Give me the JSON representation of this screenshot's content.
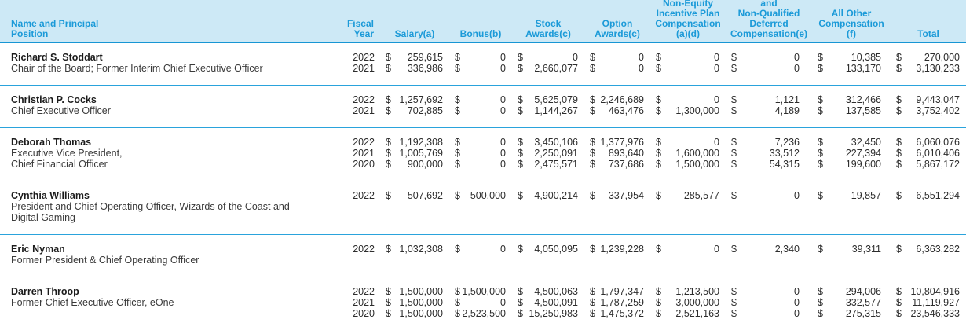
{
  "currency_symbol": "$",
  "theme": {
    "header_bg": "#cde9f6",
    "header_text": "#1b9ad8",
    "rule_color": "#1796d4",
    "body_text": "#2d2d2d"
  },
  "header": {
    "name_position": [
      "Name and Principal",
      "Position"
    ],
    "fiscal_year": [
      "Fiscal",
      "Year"
    ],
    "salary": [
      "Salary(a)"
    ],
    "bonus": [
      "Bonus(b)"
    ],
    "stock": [
      "Stock",
      "Awards(c)"
    ],
    "option": [
      "Option",
      "Awards(c)"
    ],
    "neip": [
      "Non-Equity",
      "Incentive Plan",
      "Compensation",
      "(a)(d)"
    ],
    "nqdc": [
      "and",
      "Non-Qualified",
      "Deferred",
      "Compensation(e)"
    ],
    "other": [
      "All Other",
      "Compensation",
      "(f)"
    ],
    "total": [
      "Total"
    ]
  },
  "groups": [
    {
      "name": "Richard S. Stoddart",
      "position_lines": [
        "Chair of the Board; Former Interim Chief Executive Officer"
      ],
      "rows": [
        {
          "year": "2022",
          "salary": "259,615",
          "bonus": "0",
          "stock": "0",
          "option": "0",
          "neip": "0",
          "nqdc": "0",
          "other": "10,385",
          "total": "270,000"
        },
        {
          "year": "2021",
          "salary": "336,986",
          "bonus": "0",
          "stock": "2,660,077",
          "option": "0",
          "neip": "0",
          "nqdc": "0",
          "other": "133,170",
          "total": "3,130,233"
        }
      ]
    },
    {
      "name": "Christian P. Cocks",
      "position_lines": [
        "Chief Executive Officer"
      ],
      "rows": [
        {
          "year": "2022",
          "salary": "1,257,692",
          "bonus": "0",
          "stock": "5,625,079",
          "option": "2,246,689",
          "neip": "0",
          "nqdc": "1,121",
          "other": "312,466",
          "total": "9,443,047"
        },
        {
          "year": "2021",
          "salary": "702,885",
          "bonus": "0",
          "stock": "1,144,267",
          "option": "463,476",
          "neip": "1,300,000",
          "nqdc": "4,189",
          "other": "137,585",
          "total": "3,752,402"
        }
      ]
    },
    {
      "name": "Deborah Thomas",
      "position_lines": [
        "Executive Vice President,",
        "Chief Financial Officer"
      ],
      "rows": [
        {
          "year": "2022",
          "salary": "1,192,308",
          "bonus": "0",
          "stock": "3,450,106",
          "option": "1,377,976",
          "neip": "0",
          "nqdc": "7,236",
          "other": "32,450",
          "total": "6,060,076"
        },
        {
          "year": "2021",
          "salary": "1,005,769",
          "bonus": "0",
          "stock": "2,250,091",
          "option": "893,640",
          "neip": "1,600,000",
          "nqdc": "33,512",
          "other": "227,394",
          "total": "6,010,406"
        },
        {
          "year": "2020",
          "salary": "900,000",
          "bonus": "0",
          "stock": "2,475,571",
          "option": "737,686",
          "neip": "1,500,000",
          "nqdc": "54,315",
          "other": "199,600",
          "total": "5,867,172"
        }
      ]
    },
    {
      "name": "Cynthia Williams",
      "position_lines": [
        "President and Chief Operating Officer, Wizards of the Coast and",
        "Digital Gaming"
      ],
      "rows": [
        {
          "year": "2022",
          "salary": "507,692",
          "bonus": "500,000",
          "stock": "4,900,214",
          "option": "337,954",
          "neip": "285,577",
          "nqdc": "0",
          "other": "19,857",
          "total": "6,551,294"
        }
      ]
    },
    {
      "name": "Eric Nyman",
      "position_lines": [
        "Former President & Chief Operating Officer"
      ],
      "rows": [
        {
          "year": "2022",
          "salary": "1,032,308",
          "bonus": "0",
          "stock": "4,050,095",
          "option": "1,239,228",
          "neip": "0",
          "nqdc": "2,340",
          "other": "39,311",
          "total": "6,363,282"
        }
      ]
    },
    {
      "name": "Darren Throop",
      "position_lines": [
        "Former Chief Executive Officer, eOne"
      ],
      "rows": [
        {
          "year": "2022",
          "salary": "1,500,000",
          "bonus": "1,500,000",
          "stock": "4,500,063",
          "option": "1,797,347",
          "neip": "1,213,500",
          "nqdc": "0",
          "other": "294,006",
          "total": "10,804,916"
        },
        {
          "year": "2021",
          "salary": "1,500,000",
          "bonus": "0",
          "stock": "4,500,091",
          "option": "1,787,259",
          "neip": "3,000,000",
          "nqdc": "0",
          "other": "332,577",
          "total": "11,119,927"
        },
        {
          "year": "2020",
          "salary": "1,500,000",
          "bonus": "2,523,500",
          "stock": "15,250,983",
          "option": "1,475,372",
          "neip": "2,521,163",
          "nqdc": "0",
          "other": "275,315",
          "total": "23,546,333"
        }
      ]
    }
  ]
}
